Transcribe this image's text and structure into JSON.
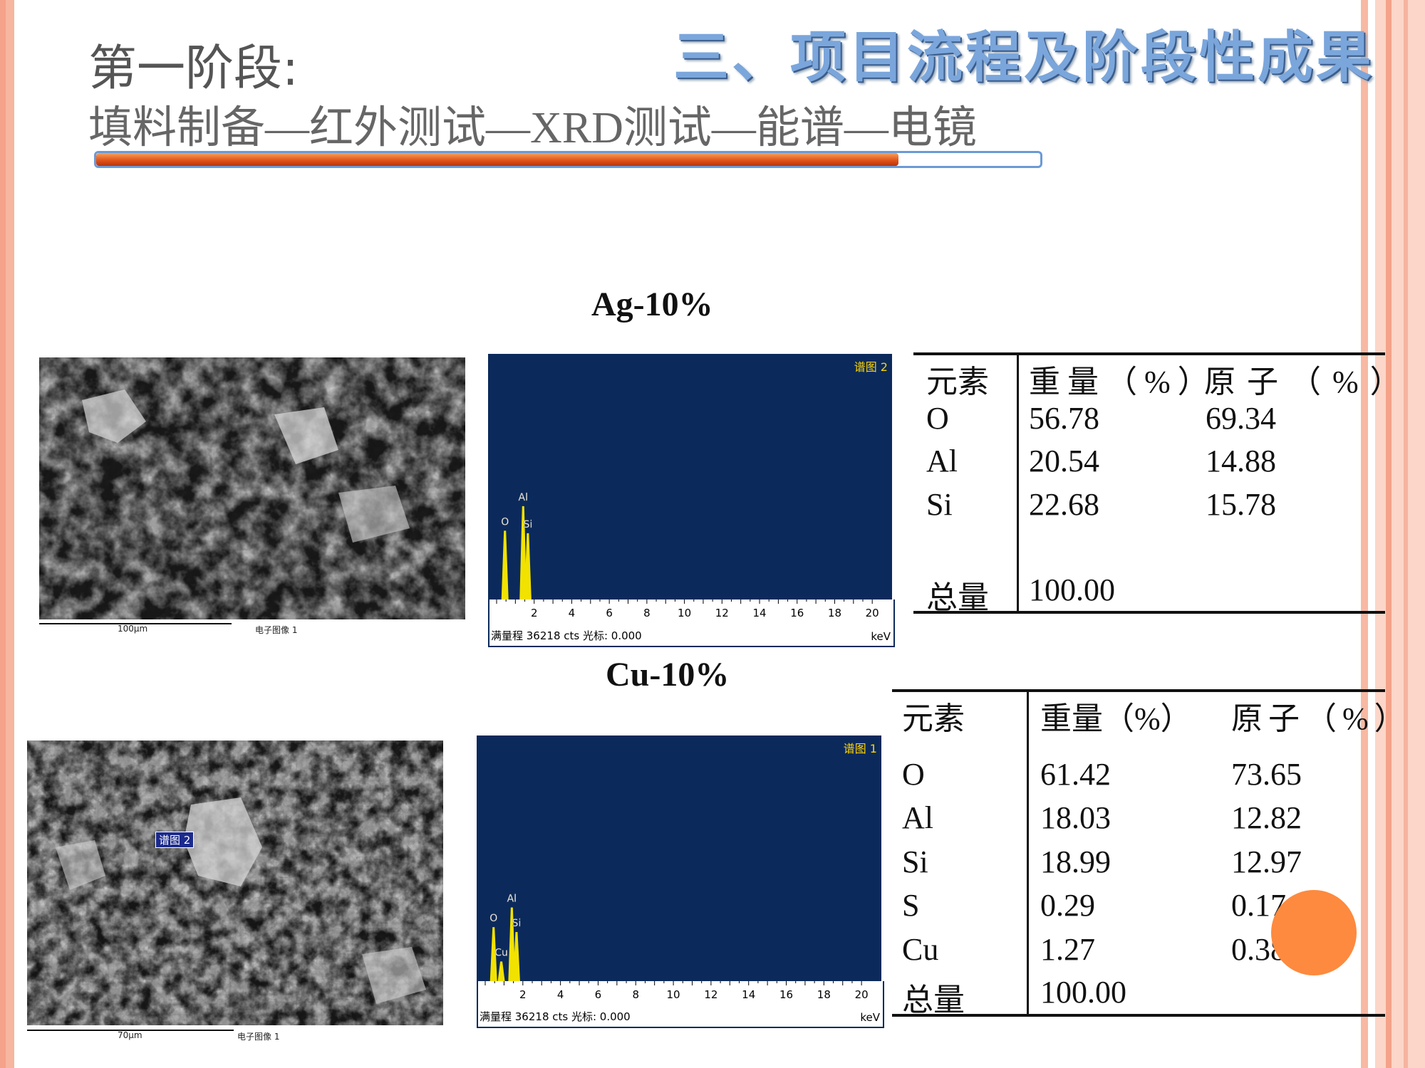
{
  "section_title": "三、项目流程及阶段性成果",
  "stage": {
    "title": "第一阶段:",
    "subtitle": "填料制备—红外测试—XRD测试—能谱—电镜",
    "progress_fraction": 0.85
  },
  "colors": {
    "accent_orange": "#e2551b",
    "spectrum_bg": "#0b2a5b",
    "peak_yellow": "#f2e200",
    "border_salmon": "#f6b6a0"
  },
  "samples": [
    {
      "title": "Ag-10%",
      "sem": {
        "scale_label": "100μm",
        "image_label": "电子图像 1"
      },
      "spectrum": {
        "tag": "谱图 2",
        "footer": "满量程 36218 cts 光标: 0.000",
        "unit": "keV",
        "ticks": [
          "2",
          "4",
          "6",
          "8",
          "10",
          "12",
          "14",
          "16",
          "18",
          "20"
        ],
        "peaks": [
          {
            "label": "O",
            "kev": 0.52,
            "height": 0.28
          },
          {
            "label": "Al",
            "kev": 1.49,
            "height": 0.38
          },
          {
            "label": "Si",
            "kev": 1.74,
            "height": 0.27
          }
        ]
      },
      "table": {
        "headers": [
          "元素",
          "重量（%）",
          "原子（%）"
        ],
        "rows": [
          [
            "O",
            "56.78",
            "69.34"
          ],
          [
            "Al",
            "20.54",
            "14.88"
          ],
          [
            "Si",
            "22.68",
            "15.78"
          ]
        ],
        "total_label": "总量",
        "total_value": "100.00"
      }
    },
    {
      "title": "Cu-10%",
      "sem": {
        "scale_label": "70μm",
        "image_label": "电子图像 1",
        "marker": "谱图 2"
      },
      "spectrum": {
        "tag": "谱图 1",
        "footer": "满量程 36218 cts 光标: 0.000",
        "unit": "keV",
        "ticks": [
          "2",
          "4",
          "6",
          "8",
          "10",
          "12",
          "14",
          "16",
          "18",
          "20"
        ],
        "peaks": [
          {
            "label": "O",
            "kev": 0.52,
            "height": 0.22
          },
          {
            "label": "Al",
            "kev": 1.49,
            "height": 0.3
          },
          {
            "label": "Si",
            "kev": 1.74,
            "height": 0.2
          },
          {
            "label": "Cu",
            "kev": 0.93,
            "height": 0.08
          }
        ]
      },
      "table": {
        "headers": [
          "元素",
          "重量（%）",
          "原子（%）"
        ],
        "rows": [
          [
            "O",
            "61.42",
            "73.65"
          ],
          [
            "Al",
            "18.03",
            "12.82"
          ],
          [
            "Si",
            "18.99",
            "12.97"
          ],
          [
            "S",
            "0.29",
            "0.17"
          ],
          [
            "Cu",
            "1.27",
            "0.38"
          ]
        ],
        "total_label": "总量",
        "total_value": "100.00"
      }
    }
  ]
}
